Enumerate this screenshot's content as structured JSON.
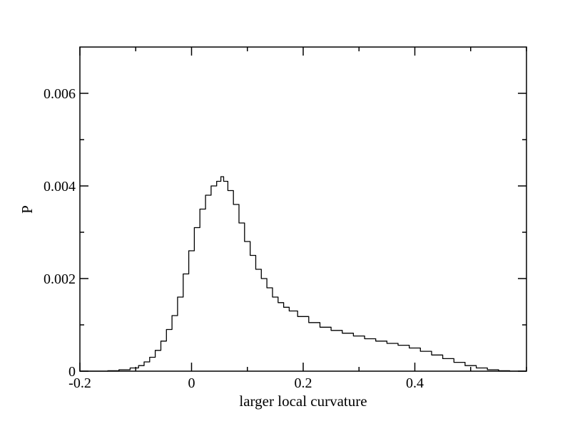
{
  "chart_data": {
    "type": "line",
    "title": "",
    "xlabel": "larger local curvature",
    "ylabel": "P",
    "xlim": [
      -0.2,
      0.6
    ],
    "ylim": [
      0,
      0.007
    ],
    "x_ticks": [
      -0.2,
      0,
      0.2,
      0.4
    ],
    "x_tick_labels": [
      "-0.2",
      "0",
      "0.2",
      "0.4"
    ],
    "x_minor_step": 0.1,
    "y_ticks": [
      0,
      0.002,
      0.004,
      0.006
    ],
    "y_tick_labels": [
      "0",
      "0.002",
      "0.004",
      "0.006"
    ],
    "y_minor_step": 0.001,
    "grid": false,
    "legend": "none",
    "line_color": "#000000",
    "series": [
      {
        "x": [
          -0.2,
          -0.18,
          -0.16,
          -0.14,
          -0.12,
          -0.1,
          -0.09,
          -0.08,
          -0.07,
          -0.06,
          -0.05,
          -0.04,
          -0.03,
          -0.02,
          -0.01,
          0.0,
          0.01,
          0.02,
          0.03,
          0.04,
          0.05,
          0.055,
          0.06,
          0.07,
          0.08,
          0.09,
          0.1,
          0.11,
          0.12,
          0.13,
          0.14,
          0.15,
          0.16,
          0.17,
          0.18,
          0.2,
          0.22,
          0.24,
          0.26,
          0.28,
          0.3,
          0.32,
          0.34,
          0.36,
          0.38,
          0.4,
          0.42,
          0.44,
          0.46,
          0.48,
          0.5,
          0.52,
          0.54,
          0.56,
          0.58,
          0.6
        ],
        "y": [
          0.0,
          0.0,
          0.0,
          1e-05,
          3e-05,
          7e-05,
          0.00012,
          0.0002,
          0.0003,
          0.00045,
          0.00065,
          0.0009,
          0.0012,
          0.0016,
          0.0021,
          0.0026,
          0.0031,
          0.0035,
          0.0038,
          0.004,
          0.0041,
          0.0042,
          0.0041,
          0.0039,
          0.0036,
          0.0032,
          0.0028,
          0.0025,
          0.0022,
          0.002,
          0.0018,
          0.0016,
          0.00148,
          0.00138,
          0.0013,
          0.00118,
          0.00105,
          0.00095,
          0.00088,
          0.00082,
          0.00076,
          0.0007,
          0.00065,
          0.0006,
          0.00056,
          0.0005,
          0.00043,
          0.00035,
          0.00027,
          0.00019,
          0.00012,
          7e-05,
          3e-05,
          1e-05,
          0.0,
          0.0
        ]
      }
    ]
  }
}
